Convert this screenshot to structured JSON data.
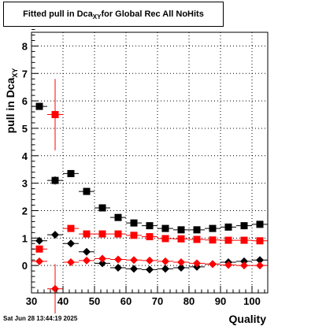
{
  "chart_data": {
    "type": "scatter",
    "title_main": "Fitted pull in Dca",
    "title_sub": "XY",
    "title_rest": " for Global Rec All NoHits",
    "xlabel": "Quality",
    "ylabel_main": "pull in Dca",
    "ylabel_sub": "XY",
    "xlim": [
      30,
      105
    ],
    "ylim": [
      -1,
      8.5
    ],
    "xticks": [
      30,
      40,
      50,
      60,
      70,
      80,
      90,
      100
    ],
    "yticks": [
      0,
      1,
      2,
      3,
      4,
      5,
      6,
      7,
      8
    ],
    "grid": true,
    "series": [
      {
        "marker": "square",
        "color": "#000000",
        "x": [
          32.5,
          37.5,
          42.5,
          47.5,
          52.5,
          57.5,
          62.5,
          67.5,
          72.5,
          77.5,
          82.5,
          87.5,
          92.5,
          97.5,
          102.5
        ],
        "y": [
          5.8,
          3.1,
          3.35,
          2.7,
          2.1,
          1.75,
          1.55,
          1.45,
          1.35,
          1.3,
          1.3,
          1.35,
          1.4,
          1.45,
          1.5
        ],
        "yerr": [
          0.1,
          0.15,
          0.12,
          0.05,
          0.04,
          0.03,
          0.02,
          0.02,
          0.02,
          0.02,
          0.02,
          0.02,
          0.02,
          0.02,
          0.02
        ]
      },
      {
        "marker": "square",
        "color": "#ff0000",
        "x": [
          32.5,
          37.5,
          42.5,
          47.5,
          52.5,
          57.5,
          62.5,
          67.5,
          72.5,
          77.5,
          82.5,
          87.5,
          92.5,
          97.5,
          102.5
        ],
        "y": [
          0.6,
          5.5,
          1.35,
          1.15,
          1.15,
          1.15,
          1.1,
          1.05,
          0.98,
          0.97,
          0.95,
          0.93,
          0.92,
          0.92,
          0.9
        ],
        "yerr": [
          0.1,
          1.3,
          0.05,
          0.03,
          0.03,
          0.02,
          0.02,
          0.02,
          0.02,
          0.02,
          0.02,
          0.02,
          0.02,
          0.02,
          0.02
        ]
      },
      {
        "marker": "diamond",
        "color": "#000000",
        "x": [
          32.5,
          37.5,
          42.5,
          47.5,
          52.5,
          57.5,
          62.5,
          67.5,
          72.5,
          77.5,
          82.5,
          87.5,
          92.5,
          97.5,
          102.5
        ],
        "y": [
          0.9,
          1.12,
          0.8,
          0.5,
          0.08,
          -0.08,
          -0.12,
          -0.15,
          -0.12,
          -0.08,
          -0.05,
          0.05,
          0.12,
          0.15,
          0.2
        ],
        "yerr": [
          0.05,
          0.08,
          0.05,
          0.03,
          0.02,
          0.02,
          0.02,
          0.02,
          0.02,
          0.02,
          0.02,
          0.02,
          0.02,
          0.02,
          0.02
        ]
      },
      {
        "marker": "diamond",
        "color": "#ff0000",
        "x": [
          32.5,
          37.5,
          42.5,
          47.5,
          52.5,
          57.5,
          62.5,
          67.5,
          72.5,
          77.5,
          82.5,
          87.5,
          92.5,
          97.5,
          102.5
        ],
        "y": [
          0.15,
          -0.85,
          0.12,
          0.18,
          0.25,
          0.22,
          0.2,
          0.18,
          0.15,
          0.12,
          0.08,
          0.05,
          0.02,
          0.0,
          0.0
        ],
        "yerr": [
          0.05,
          0.9,
          0.03,
          0.02,
          0.02,
          0.02,
          0.02,
          0.02,
          0.02,
          0.02,
          0.02,
          0.02,
          0.02,
          0.02,
          0.02
        ]
      }
    ]
  },
  "footer": {
    "date": "Sat Jun 28 13:44:19 2025"
  }
}
